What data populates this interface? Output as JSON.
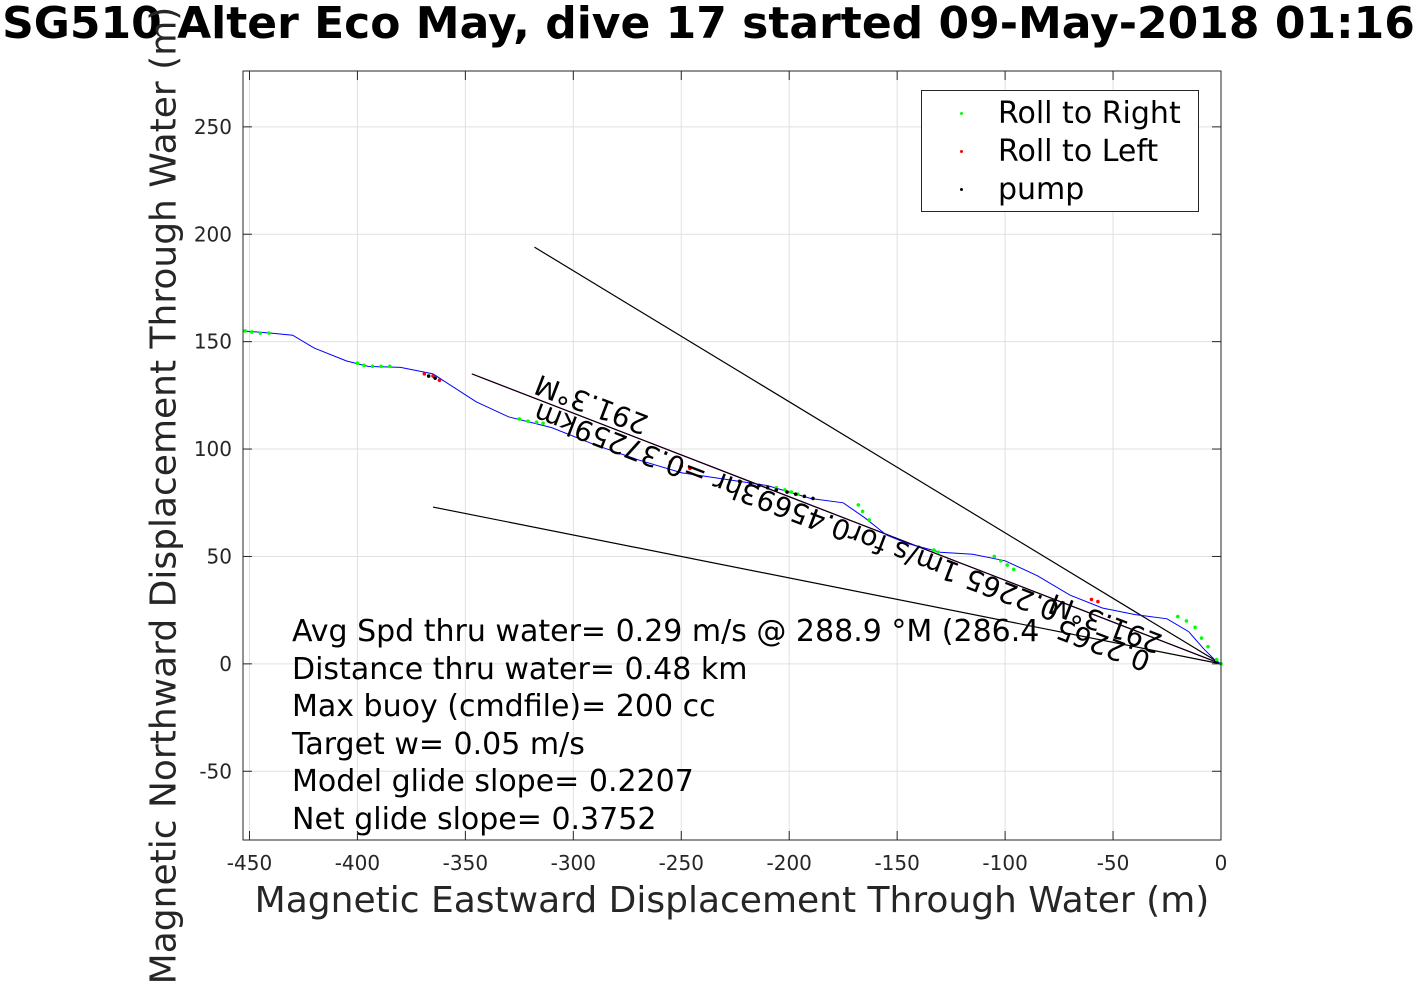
{
  "chart_data": {
    "type": "scatter",
    "title": "SG510 Alter Eco May, dive 17 started 09-May-2018 01:16",
    "xlabel": "Magnetic Eastward Displacement Through Water (m)",
    "ylabel": "Magnetic Northward Displacement Through Water (m)",
    "xlim": [
      -453,
      0
    ],
    "ylim": [
      -82,
      276
    ],
    "xticks": [
      -450,
      -400,
      -350,
      -300,
      -250,
      -200,
      -150,
      -100,
      -50,
      0
    ],
    "yticks": [
      -50,
      0,
      50,
      100,
      150,
      200,
      250
    ],
    "grid": true,
    "legend_position": "top-right",
    "series": [
      {
        "name": "Roll to Right",
        "color": "#00ff00",
        "marker": "dot",
        "x": [
          -452,
          -449,
          -445,
          -441,
          -400,
          -397,
          -393,
          -389,
          -385,
          -325,
          -321,
          -317,
          -314,
          -206,
          -202,
          -199,
          -196,
          -168,
          -166,
          -163,
          -133,
          -131,
          -105,
          -102,
          -99,
          -96,
          -20,
          -16,
          -12,
          -9,
          -6,
          -2,
          0
        ],
        "y": [
          155,
          154.5,
          154,
          154,
          140,
          139,
          138.5,
          138.5,
          138.5,
          114,
          113,
          112.5,
          112,
          82,
          81,
          80,
          79,
          74,
          71,
          67,
          53,
          52,
          50,
          48,
          46,
          44,
          22,
          20,
          17,
          12,
          8,
          2,
          0
        ]
      },
      {
        "name": "Roll to Left",
        "color": "#ff0000",
        "marker": "dot",
        "x": [
          -369,
          -365,
          -362,
          -255,
          -250,
          -246,
          -60,
          -57
        ],
        "y": [
          135,
          134,
          132,
          94,
          92,
          91,
          30,
          29
        ]
      },
      {
        "name": "pump",
        "color": "#000000",
        "marker": "dot",
        "x": [
          -367,
          -364,
          -223,
          -218,
          -214,
          -210,
          -206,
          -201,
          -197,
          -193,
          -189
        ],
        "y": [
          134,
          133,
          85,
          84,
          83,
          82,
          81,
          80,
          79,
          78,
          77
        ]
      }
    ],
    "track": {
      "name": "glider track",
      "color": "#0000ff",
      "x": [
        -453,
        -440,
        -430,
        -420,
        -405,
        -395,
        -380,
        -365,
        -345,
        -330,
        -310,
        -290,
        -270,
        -250,
        -230,
        -210,
        -190,
        -175,
        -165,
        -155,
        -145,
        -130,
        -115,
        -100,
        -85,
        -70,
        -55,
        -40,
        -25,
        -15,
        -8,
        -3,
        0
      ],
      "y": [
        155,
        154,
        153,
        147,
        141,
        138.5,
        138,
        135,
        122,
        115,
        110,
        102,
        95,
        89,
        86,
        83,
        77,
        75,
        68,
        60,
        56,
        52,
        51,
        48,
        41,
        32,
        26,
        23,
        21,
        15,
        7,
        2,
        0
      ]
    },
    "lines": [
      {
        "name": "net track",
        "color": "#ff00ff",
        "x": [
          -347,
          0
        ],
        "y": [
          135,
          0
        ]
      },
      {
        "name": "net track shadow",
        "color": "#000000",
        "x": [
          -347,
          0
        ],
        "y": [
          135,
          0
        ]
      },
      {
        "name": "current heading upper",
        "color": "#000000",
        "x": [
          -318,
          0
        ],
        "y": [
          194,
          0
        ]
      },
      {
        "name": "current heading lower",
        "color": "#000000",
        "x": [
          -365,
          0
        ],
        "y": [
          73,
          0
        ]
      }
    ],
    "annotations": [
      {
        "text": "291.3°M",
        "x": -290,
        "y": 125,
        "angle": 201
      },
      {
        "text": "0.2265 1m/s for0.45693hr =0.37259km",
        "x": -195,
        "y": 75,
        "angle": 201
      },
      {
        "text": "291.3°M",
        "x": -52,
        "y": 23,
        "angle": 201
      },
      {
        "text": "0.2265",
        "x": -53,
        "y": 13,
        "angle": 201
      }
    ],
    "stats": [
      "Avg Spd thru water=  0.29 m/s @ 288.9 °M (286.4",
      "Distance thru water=  0.48 km",
      "Max buoy (cmdfile)= 200 cc",
      "Target w= 0.05 m/s",
      "Model glide slope= 0.2207",
      "Net glide slope= 0.3752"
    ]
  }
}
